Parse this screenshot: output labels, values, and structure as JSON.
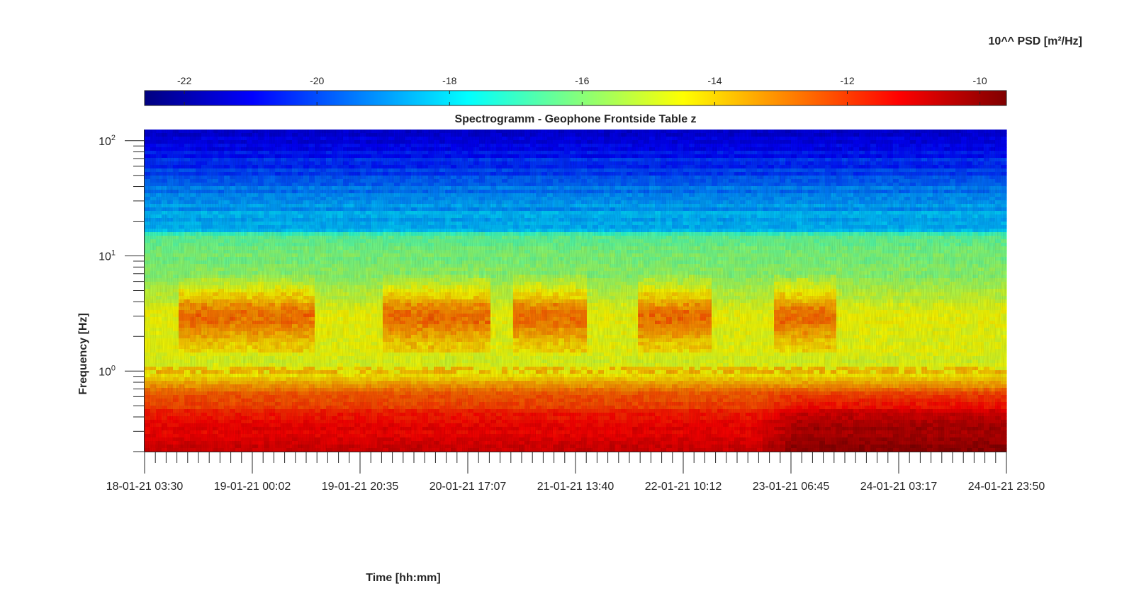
{
  "chart_data": {
    "type": "heatmap",
    "title": "Spectrogramm - Geophone Frontside Table z",
    "xlabel": "Time [hh:mm]",
    "ylabel": "Frequency [Hz]",
    "colorbar_label": "10^^ PSD [m²/Hz]",
    "colormap": "jet",
    "colorbar_position": "top",
    "clim": [
      -22.6,
      -9.6
    ],
    "colorbar_ticks": [
      -22,
      -20,
      -18,
      -16,
      -14,
      -12,
      -10
    ],
    "colorbar_tick_labels": [
      "-22",
      "-20",
      "-18",
      "-16",
      "-14",
      "-12",
      "-10"
    ],
    "y_scale": "log",
    "ylim": [
      0.2,
      125
    ],
    "y_major_ticks": [
      1,
      10,
      100
    ],
    "y_tick_labels": [
      {
        "base": "10",
        "exp": "0"
      },
      {
        "base": "10",
        "exp": "1"
      },
      {
        "base": "10",
        "exp": "2"
      }
    ],
    "xlim": [
      "18-01-21 03:30",
      "24-01-21 23:50"
    ],
    "x_tick_labels": [
      "18-01-21 03:30",
      "19-01-21 00:02",
      "19-01-21 20:35",
      "20-01-21 17:07",
      "21-01-21 13:40",
      "22-01-21 10:12",
      "23-01-21 06:45",
      "24-01-21 03:17",
      "24-01-21 23:50"
    ],
    "x_minor_ticks_per_major": 10,
    "psd_profile": [
      {
        "f": 0.2,
        "psd": -10.6
      },
      {
        "f": 0.4,
        "psd": -11.5
      },
      {
        "f": 0.7,
        "psd": -12.8
      },
      {
        "f": 0.9,
        "psd": -14.3
      },
      {
        "f": 1.2,
        "psd": -14.8
      },
      {
        "f": 3.0,
        "psd": -14.5
      },
      {
        "f": 6.0,
        "psd": -15.8
      },
      {
        "f": 15.0,
        "psd": -16.4
      },
      {
        "f": 16.0,
        "psd": -18.2
      },
      {
        "f": 30.0,
        "psd": -19.0
      },
      {
        "f": 125.0,
        "psd": -21.6
      }
    ],
    "active_periods_3hz": [
      {
        "start": "18-01-21 10:00",
        "end": "19-01-21 12:00"
      },
      {
        "start": "20-01-21 01:00",
        "end": "20-01-21 21:00"
      },
      {
        "start": "21-01-21 02:00",
        "end": "21-01-21 16:00"
      },
      {
        "start": "22-01-21 02:00",
        "end": "22-01-21 16:00"
      },
      {
        "start": "23-01-21 03:00",
        "end": "23-01-21 15:00"
      }
    ],
    "low_frequency_increase_from": "23-01-21 00:00"
  }
}
